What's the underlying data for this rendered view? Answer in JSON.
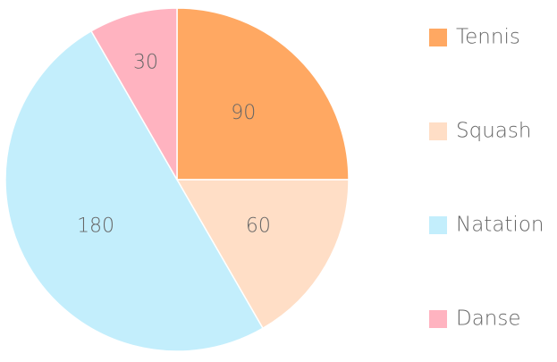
{
  "chart_data": {
    "type": "pie",
    "categories": [
      "Tennis",
      "Squash",
      "Natation",
      "Danse"
    ],
    "values": [
      90,
      60,
      180,
      30
    ],
    "colors": [
      "#ffa862",
      "#ffdec6",
      "#c3eefc",
      "#ffb3c0"
    ],
    "legend": "right"
  }
}
